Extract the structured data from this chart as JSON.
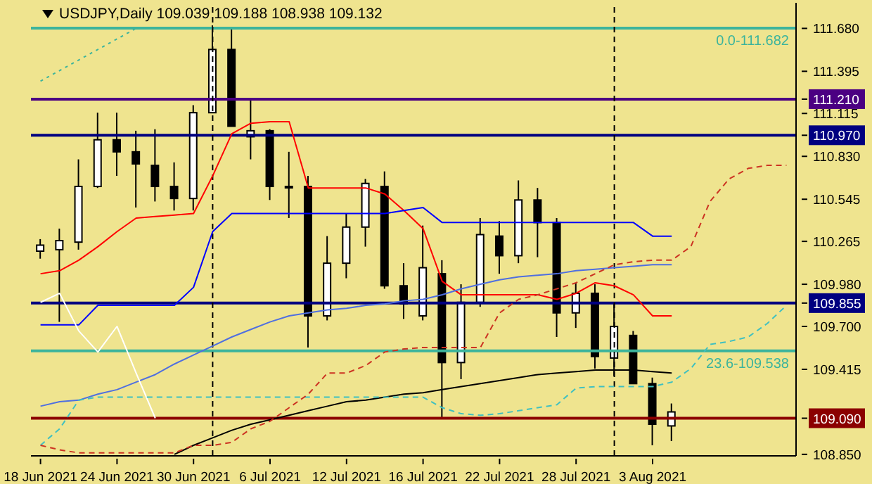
{
  "chart_data": {
    "type": "candlestick",
    "title": "USDJPY,Daily 109.039 109.188 108.938 109.132",
    "categories": [
      "18 Jun 2021",
      null,
      null,
      null,
      "24 Jun 2021",
      null,
      null,
      null,
      "30 Jun 2021",
      null,
      null,
      null,
      "6 Jul 2021",
      null,
      null,
      null,
      "12 Jul 2021",
      null,
      null,
      null,
      "16 Jul 2021",
      null,
      null,
      null,
      "22 Jul 2021",
      null,
      null,
      null,
      "28 Jul 2021",
      null,
      null,
      null,
      "3 Aug 2021",
      null,
      null,
      null,
      null,
      null,
      null,
      null
    ],
    "ohlc": [
      [
        110.2,
        110.28,
        110.15,
        110.24
      ],
      [
        110.21,
        110.35,
        109.73,
        110.27
      ],
      [
        110.26,
        110.81,
        110.21,
        110.63
      ],
      [
        110.63,
        111.12,
        110.62,
        110.94
      ],
      [
        110.94,
        111.12,
        110.7,
        110.86
      ],
      [
        110.86,
        111.0,
        110.49,
        110.78
      ],
      [
        110.77,
        111.01,
        110.53,
        110.63
      ],
      [
        110.63,
        110.79,
        110.47,
        110.55
      ],
      [
        110.55,
        111.17,
        110.47,
        111.12
      ],
      [
        111.12,
        111.7,
        111.12,
        111.54
      ],
      [
        111.54,
        111.68,
        111.03,
        111.03
      ],
      [
        110.96,
        111.21,
        110.81,
        111.0
      ],
      [
        111.0,
        111.01,
        110.54,
        110.63
      ],
      [
        110.63,
        110.86,
        110.42,
        110.63
      ],
      [
        110.63,
        110.7,
        109.56,
        109.77
      ],
      [
        109.77,
        110.3,
        109.74,
        110.12
      ],
      [
        110.12,
        110.45,
        110.02,
        110.36
      ],
      [
        110.36,
        110.68,
        110.23,
        110.65
      ],
      [
        110.63,
        110.73,
        109.95,
        109.97
      ],
      [
        109.97,
        110.12,
        109.75,
        109.85
      ],
      [
        109.77,
        110.37,
        109.74,
        110.09
      ],
      [
        110.05,
        110.14,
        109.09,
        109.46
      ],
      [
        109.46,
        109.98,
        109.35,
        109.86
      ],
      [
        109.86,
        110.42,
        109.83,
        110.31
      ],
      [
        110.3,
        110.4,
        110.05,
        110.17
      ],
      [
        110.17,
        110.67,
        110.12,
        110.54
      ],
      [
        110.54,
        110.62,
        110.16,
        110.39
      ],
      [
        110.39,
        110.42,
        109.63,
        109.79
      ],
      [
        109.79,
        109.99,
        109.69,
        109.92
      ],
      [
        109.92,
        109.98,
        109.42,
        109.5
      ],
      [
        109.49,
        109.86,
        109.37,
        109.7
      ],
      [
        109.64,
        109.67,
        109.32,
        109.32
      ],
      [
        109.32,
        109.36,
        108.91,
        109.05
      ],
      [
        109.039,
        109.188,
        108.938,
        109.132
      ],
      null,
      null,
      null,
      null,
      null,
      null
    ],
    "series": [
      {
        "type": "line",
        "color": "#ff0000",
        "values": [
          110.05,
          110.07,
          110.14,
          110.23,
          110.33,
          110.42,
          110.43,
          110.44,
          110.45,
          110.7,
          110.98,
          111.05,
          111.06,
          111.06,
          110.62,
          110.62,
          110.62,
          110.62,
          110.58,
          110.47,
          110.35,
          110.0,
          109.91,
          109.91,
          109.91,
          109.91,
          109.91,
          109.88,
          109.92,
          109.99,
          109.97,
          109.91,
          109.77,
          109.77,
          null,
          null,
          null,
          null,
          null,
          null
        ]
      },
      {
        "type": "line",
        "color": "#0000ff",
        "values": [
          109.71,
          109.71,
          109.71,
          109.84,
          109.84,
          109.84,
          109.84,
          109.84,
          109.96,
          110.33,
          110.45,
          110.45,
          110.45,
          110.45,
          110.45,
          110.45,
          110.45,
          110.45,
          110.45,
          110.47,
          110.49,
          110.39,
          110.39,
          110.39,
          110.39,
          110.39,
          110.39,
          110.39,
          110.39,
          110.39,
          110.39,
          110.39,
          110.3,
          110.3,
          null,
          null,
          null,
          null,
          null,
          null
        ]
      },
      {
        "type": "line",
        "color": "#4f6fe0",
        "values": [
          109.17,
          109.2,
          109.21,
          109.25,
          109.28,
          109.33,
          109.38,
          109.45,
          109.51,
          109.57,
          109.63,
          109.68,
          109.73,
          109.77,
          109.79,
          109.81,
          109.82,
          109.84,
          109.85,
          109.87,
          109.88,
          109.91,
          109.95,
          109.98,
          110.01,
          110.03,
          110.04,
          110.05,
          110.07,
          110.08,
          110.09,
          110.1,
          110.11,
          110.11,
          null,
          null,
          null,
          null,
          null,
          null
        ]
      },
      {
        "type": "line",
        "color": "#000000",
        "values": [
          null,
          null,
          null,
          null,
          null,
          null,
          null,
          108.85,
          108.91,
          108.96,
          109.01,
          109.05,
          109.08,
          109.11,
          109.14,
          109.17,
          109.2,
          109.21,
          109.23,
          109.25,
          109.26,
          109.28,
          109.3,
          109.32,
          109.34,
          109.36,
          109.38,
          109.39,
          109.4,
          109.41,
          109.41,
          109.41,
          109.4,
          109.39,
          null,
          null,
          null,
          null,
          null,
          null
        ]
      },
      {
        "type": "line",
        "color": "#ffffff",
        "values": [
          109.86,
          109.92,
          109.67,
          109.53,
          109.7,
          109.39,
          109.09,
          null,
          null,
          null,
          null,
          null,
          null,
          null,
          null,
          null,
          null,
          null,
          null,
          null,
          null,
          null,
          null,
          null,
          null,
          null,
          null,
          null,
          null,
          null,
          null,
          null,
          null,
          null,
          null,
          null,
          null,
          null,
          null,
          null
        ]
      },
      {
        "type": "line",
        "color": "#40c0c0",
        "line_style": "dashed",
        "values": [
          108.91,
          109.02,
          109.21,
          109.23,
          109.23,
          109.23,
          109.23,
          109.23,
          109.23,
          109.23,
          109.23,
          109.23,
          109.23,
          109.23,
          109.23,
          109.23,
          109.23,
          109.23,
          109.23,
          109.23,
          109.23,
          109.16,
          109.12,
          109.11,
          109.12,
          109.14,
          109.16,
          109.18,
          109.29,
          109.3,
          109.3,
          109.3,
          109.3,
          109.33,
          109.42,
          109.58,
          109.6,
          109.63,
          109.72,
          109.84
        ]
      },
      {
        "type": "line",
        "color": "#cc3322",
        "line_style": "dashed",
        "values": [
          108.91,
          108.88,
          108.86,
          108.86,
          108.86,
          108.86,
          108.86,
          108.86,
          108.91,
          108.91,
          108.93,
          109.02,
          109.07,
          109.16,
          109.25,
          109.39,
          109.39,
          109.44,
          109.53,
          109.55,
          109.56,
          109.56,
          109.56,
          109.56,
          109.79,
          109.88,
          109.91,
          109.95,
          109.99,
          110.05,
          110.11,
          110.13,
          110.14,
          110.14,
          110.23,
          110.53,
          110.68,
          110.75,
          110.77,
          110.77
        ]
      },
      {
        "type": "line",
        "color": "#3cb49c",
        "line_style": "dotted",
        "values": [
          111.33,
          null,
          null,
          null,
          null,
          111.68,
          null,
          null,
          null,
          null,
          null,
          null,
          null,
          null,
          null,
          null,
          null,
          null,
          null,
          null,
          null,
          null,
          null,
          null,
          null,
          null,
          null,
          null,
          null,
          null,
          null,
          null,
          null,
          null,
          null,
          null,
          null,
          null,
          null,
          null
        ]
      }
    ],
    "ylim": [
      108.84,
      111.85
    ],
    "yticks": [
      {
        "value": 108.85,
        "label": "108.850"
      },
      {
        "value": 109.09,
        "label": "109.090"
      },
      {
        "value": 109.415,
        "label": "109.415"
      },
      {
        "value": 109.7,
        "label": "109.700"
      },
      {
        "value": 109.855,
        "label": "109.855"
      },
      {
        "value": 109.98,
        "label": "109.980"
      },
      {
        "value": 110.265,
        "label": "110.265"
      },
      {
        "value": 110.545,
        "label": "110.545"
      },
      {
        "value": 110.83,
        "label": "110.830"
      },
      {
        "value": 110.97,
        "label": "110.970"
      },
      {
        "value": 111.115,
        "label": "111.115"
      },
      {
        "value": 111.21,
        "label": "111.210"
      },
      {
        "value": 111.395,
        "label": "111.395"
      },
      {
        "value": 111.68,
        "label": "111.680"
      }
    ],
    "ref_lines": [
      {
        "axis": "y",
        "value": 111.21,
        "color": "#4b0082"
      },
      {
        "axis": "y",
        "value": 110.97,
        "color": "#000080"
      },
      {
        "axis": "y",
        "value": 109.855,
        "color": "#000080"
      },
      {
        "axis": "y",
        "value": 109.09,
        "color": "#8b0000"
      },
      {
        "axis": "y",
        "value": 111.682,
        "color": "#3cb49c"
      },
      {
        "axis": "y",
        "value": 109.538,
        "color": "#3cb49c"
      }
    ],
    "annotations": [
      {
        "text": "0.0-111.682",
        "y": 111.682
      },
      {
        "text": "23.6-109.538",
        "y": 109.538
      }
    ],
    "ylabel": null
  }
}
